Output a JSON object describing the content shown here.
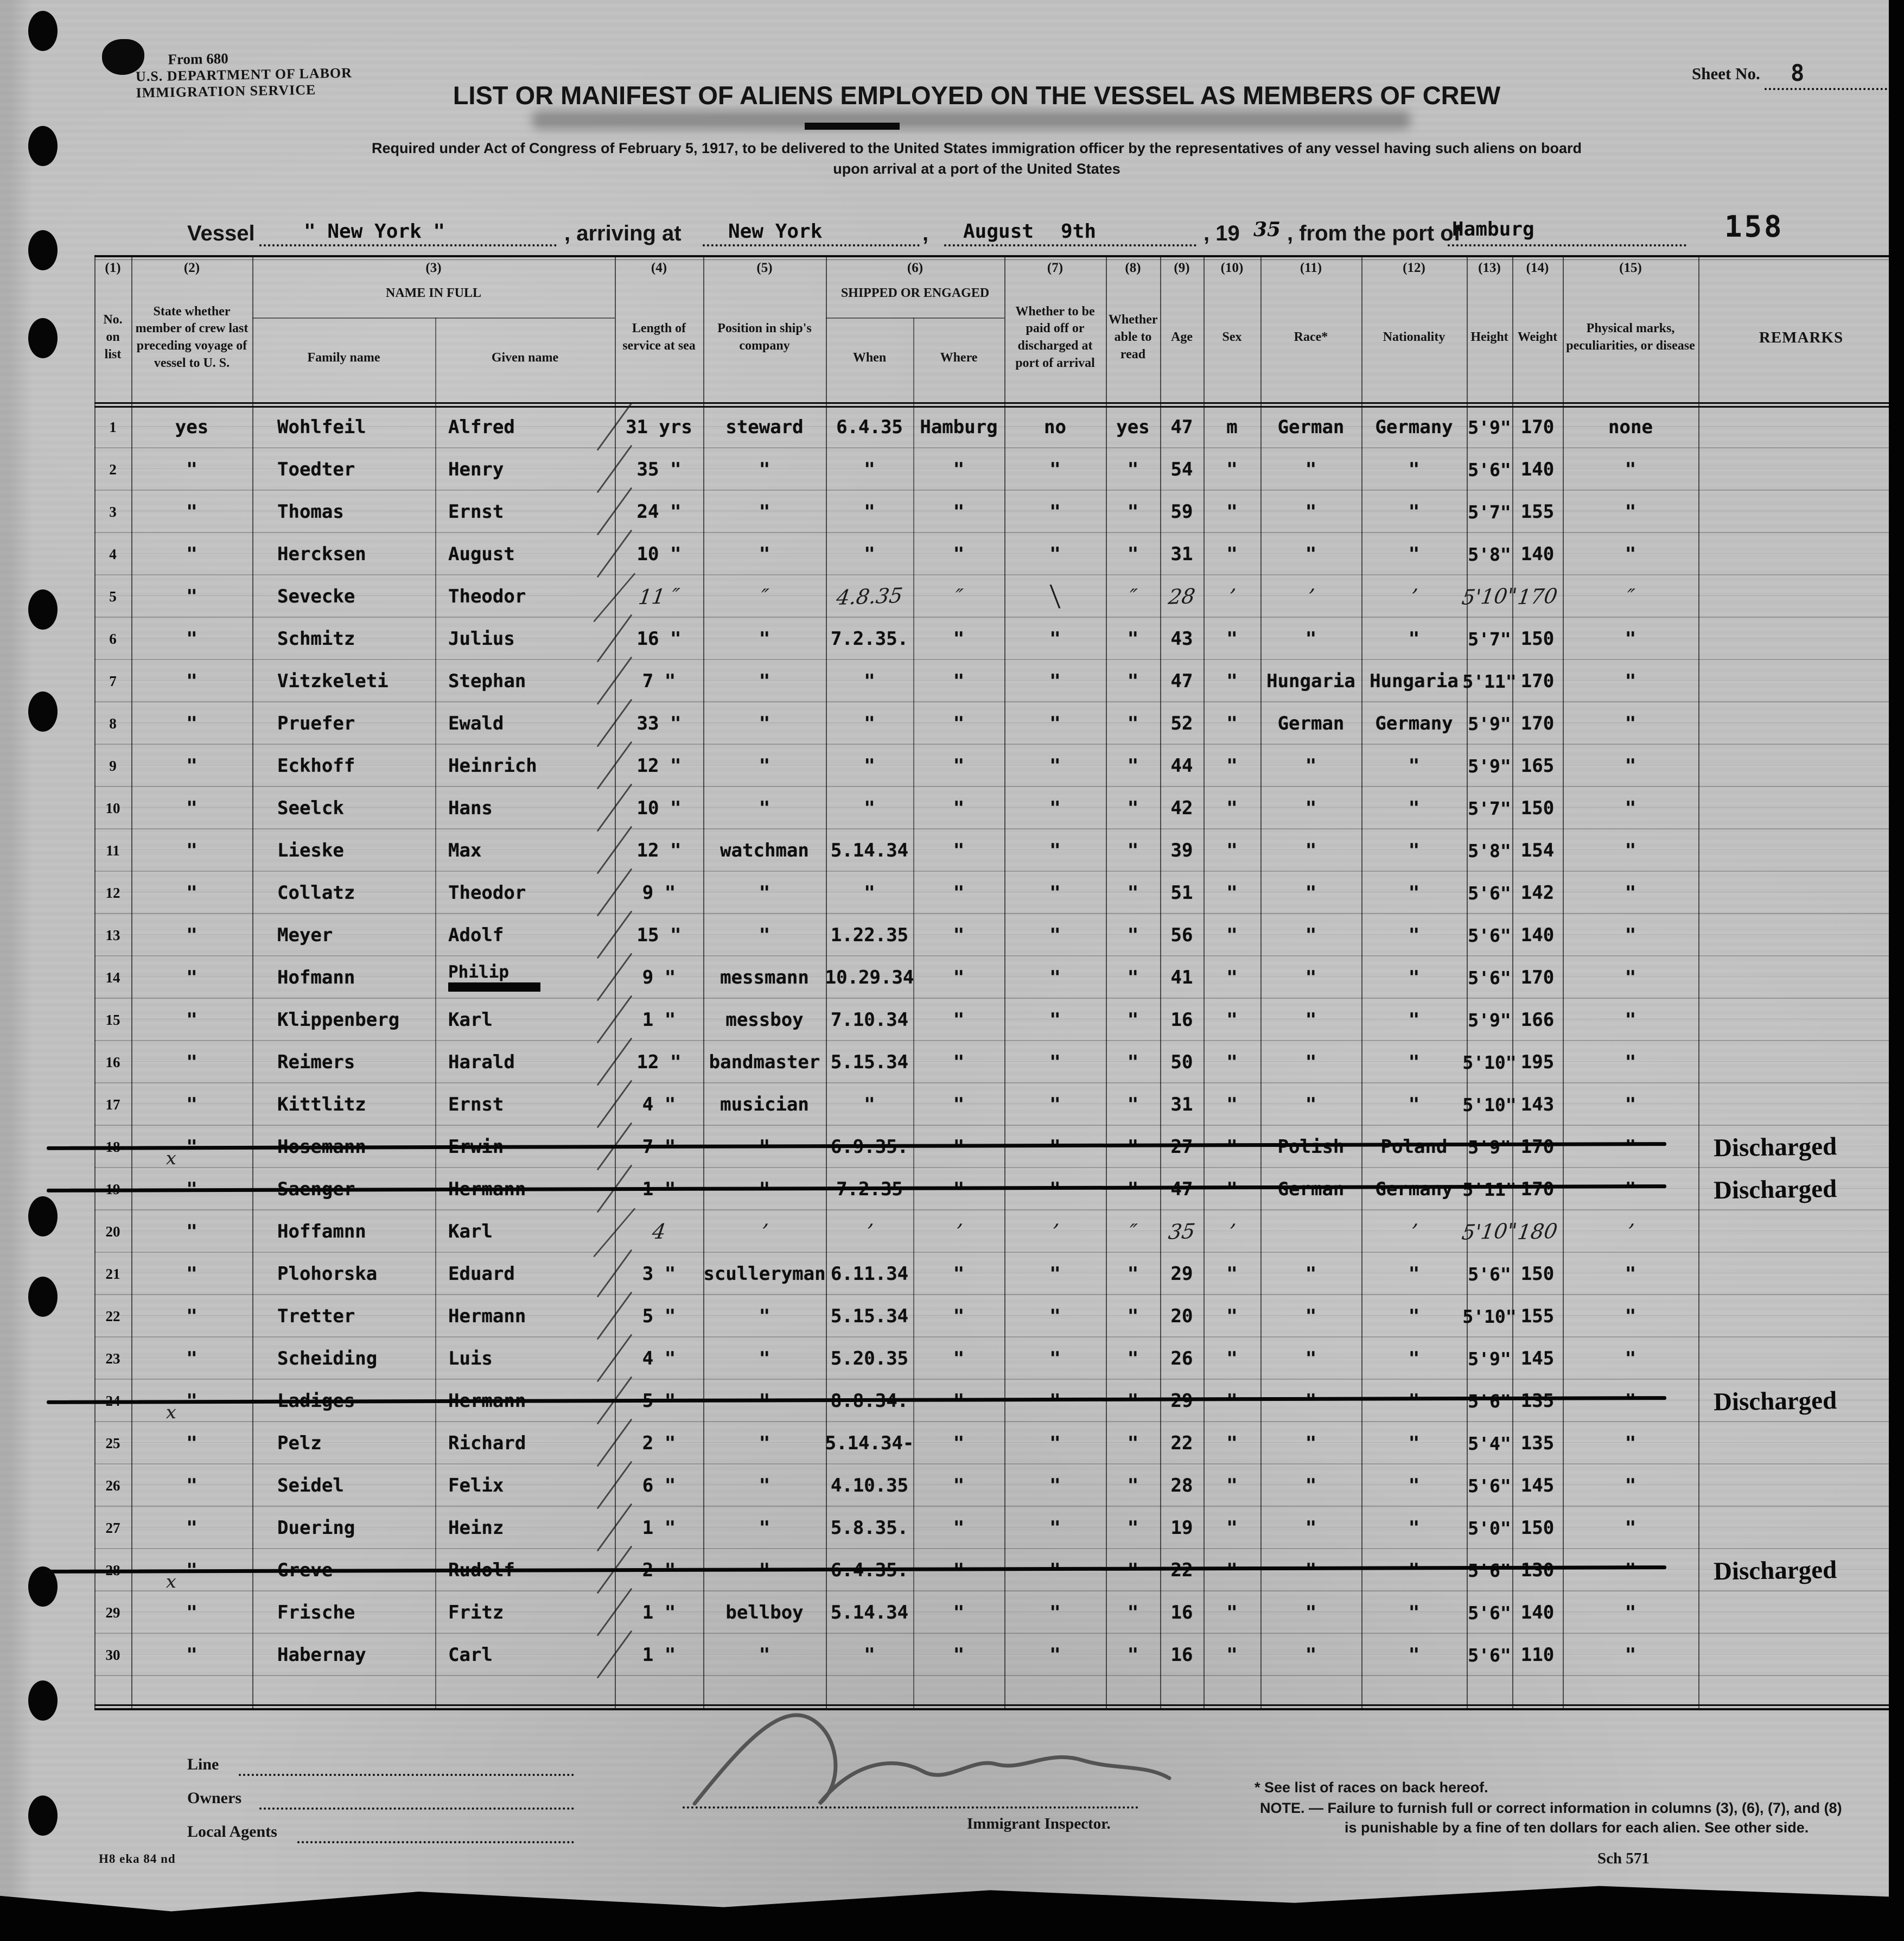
{
  "form": {
    "form_no": "From 680",
    "dept": "U.S. DEPARTMENT OF LABOR",
    "service": "IMMIGRATION SERVICE",
    "title": "LIST OR MANIFEST OF ALIENS EMPLOYED ON THE VESSEL AS MEMBERS OF CREW",
    "req_line1": "Required under Act of Congress of February 5, 1917, to be delivered to the United States immigration officer by the representatives of any vessel having such aliens on board",
    "req_line2": "upon arrival at a port of the United States",
    "sheet_label": "Sheet No.",
    "sheet_no": "8",
    "stamp_number": "158"
  },
  "vessel_line": {
    "vessel_label": "Vessel",
    "vessel_name": "\" New York \"",
    "arriving_label": ", arriving at",
    "arrival_port": "New York",
    "month": "August",
    "day": "9th",
    "year_label": ", 19",
    "year": "35",
    "from_label": ", from the port of",
    "departure_port": "Hamburg"
  },
  "columns": {
    "c1_num": "(1)",
    "c1": "No. on list",
    "c2_num": "(2)",
    "c2": "State whether member of crew last preceding voyage of vessel to U. S.",
    "c3_num": "(3)",
    "c3": "NAME IN FULL",
    "c3a": "Family name",
    "c3b": "Given name",
    "c4_num": "(4)",
    "c4": "Length of service at sea",
    "c5_num": "(5)",
    "c5": "Position in ship's company",
    "c6_num": "(6)",
    "c6": "SHIPPED OR ENGAGED",
    "c6a": "When",
    "c6b": "Where",
    "c7_num": "(7)",
    "c7": "Whether to be paid off or discharged at port of arrival",
    "c8_num": "(8)",
    "c8": "Whether able to read",
    "c9_num": "(9)",
    "c9": "Age",
    "c10_num": "(10)",
    "c10": "Sex",
    "c11_num": "(11)",
    "c11": "Race*",
    "c12_num": "(12)",
    "c12": "Nationality",
    "c13_num": "(13)",
    "c13": "Height",
    "c14_num": "(14)",
    "c14": "Weight",
    "c15_num": "(15)",
    "c15": "Physical marks, peculiarities, or disease",
    "c16": "REMARKS"
  },
  "rows": [
    {
      "no": "1",
      "crew": "yes",
      "family": "Wohlfeil",
      "given": "Alfred",
      "len": "31 yrs",
      "pos": "steward",
      "when": "6.4.35",
      "where": "Hamburg",
      "paid": "no",
      "read": "yes",
      "age": "47",
      "sex": "m",
      "race": "German",
      "nat": "Germany",
      "height": "5'9\"",
      "weight": "170",
      "marks": "none",
      "remark": ""
    },
    {
      "no": "2",
      "crew": "\"",
      "family": "Toedter",
      "given": "Henry",
      "len": "35 \"",
      "pos": "\"",
      "when": "\"",
      "where": "\"",
      "paid": "\"",
      "read": "\"",
      "age": "54",
      "sex": "\"",
      "race": "\"",
      "nat": "\"",
      "height": "5'6\"",
      "weight": "140",
      "marks": "\"",
      "remark": ""
    },
    {
      "no": "3",
      "crew": "\"",
      "family": "Thomas",
      "given": "Ernst",
      "len": "24 \"",
      "pos": "\"",
      "when": "\"",
      "where": "\"",
      "paid": "\"",
      "read": "\"",
      "age": "59",
      "sex": "\"",
      "race": "\"",
      "nat": "\"",
      "height": "5'7\"",
      "weight": "155",
      "marks": "\"",
      "remark": ""
    },
    {
      "no": "4",
      "crew": "\"",
      "family": "Hercksen",
      "given": "August",
      "len": "10 \"",
      "pos": "\"",
      "when": "\"",
      "where": "\"",
      "paid": "\"",
      "read": "\"",
      "age": "31",
      "sex": "\"",
      "race": "\"",
      "nat": "\"",
      "height": "5'8\"",
      "weight": "140",
      "marks": "\"",
      "remark": ""
    },
    {
      "no": "5",
      "crew": "\"",
      "family": "Sevecke",
      "given": "Theodor",
      "len": "11 ″",
      "pos": "″",
      "when": "4.8.35",
      "where": "″",
      "paid": "╲",
      "read": "″",
      "age": "28",
      "sex": "’",
      "race": "’",
      "nat": "’",
      "height": "5'10\"",
      "weight": "170",
      "marks": "″",
      "remark": "",
      "hw": true
    },
    {
      "no": "6",
      "crew": "\"",
      "family": "Schmitz",
      "given": "Julius",
      "len": "16 \"",
      "pos": "\"",
      "when": "7.2.35.",
      "where": "\"",
      "paid": "\"",
      "read": "\"",
      "age": "43",
      "sex": "\"",
      "race": "\"",
      "nat": "\"",
      "height": "5'7\"",
      "weight": "150",
      "marks": "\"",
      "remark": ""
    },
    {
      "no": "7",
      "crew": "\"",
      "family": "Vitzkeleti",
      "given": "Stephan",
      "len": "7 \"",
      "pos": "\"",
      "when": "\"",
      "where": "\"",
      "paid": "\"",
      "read": "\"",
      "age": "47",
      "sex": "\"",
      "race": "Hungaria",
      "nat": "Hungaria",
      "height": "5'11\"",
      "weight": "170",
      "marks": "\"",
      "remark": ""
    },
    {
      "no": "8",
      "crew": "\"",
      "family": "Pruefer",
      "given": "Ewald",
      "len": "33 \"",
      "pos": "\"",
      "when": "\"",
      "where": "\"",
      "paid": "\"",
      "read": "\"",
      "age": "52",
      "sex": "\"",
      "race": "German",
      "nat": "Germany",
      "height": "5'9\"",
      "weight": "170",
      "marks": "\"",
      "remark": ""
    },
    {
      "no": "9",
      "crew": "\"",
      "family": "Eckhoff",
      "given": "Heinrich",
      "len": "12 \"",
      "pos": "\"",
      "when": "\"",
      "where": "\"",
      "paid": "\"",
      "read": "\"",
      "age": "44",
      "sex": "\"",
      "race": "\"",
      "nat": "\"",
      "height": "5'9\"",
      "weight": "165",
      "marks": "\"",
      "remark": ""
    },
    {
      "no": "10",
      "crew": "\"",
      "family": "Seelck",
      "given": "Hans",
      "len": "10 \"",
      "pos": "\"",
      "when": "\"",
      "where": "\"",
      "paid": "\"",
      "read": "\"",
      "age": "42",
      "sex": "\"",
      "race": "\"",
      "nat": "\"",
      "height": "5'7\"",
      "weight": "150",
      "marks": "\"",
      "remark": ""
    },
    {
      "no": "11",
      "crew": "\"",
      "family": "Lieske",
      "given": "Max",
      "len": "12 \"",
      "pos": "watchman",
      "when": "5.14.34",
      "where": "\"",
      "paid": "\"",
      "read": "\"",
      "age": "39",
      "sex": "\"",
      "race": "\"",
      "nat": "\"",
      "height": "5'8\"",
      "weight": "154",
      "marks": "\"",
      "remark": ""
    },
    {
      "no": "12",
      "crew": "\"",
      "family": "Collatz",
      "given": "Theodor",
      "len": "9 \"",
      "pos": "\"",
      "when": "\"",
      "where": "\"",
      "paid": "\"",
      "read": "\"",
      "age": "51",
      "sex": "\"",
      "race": "\"",
      "nat": "\"",
      "height": "5'6\"",
      "weight": "142",
      "marks": "\"",
      "remark": ""
    },
    {
      "no": "13",
      "crew": "\"",
      "family": "Meyer",
      "given": "Adolf",
      "len": "15 \"",
      "pos": "\"",
      "when": "1.22.35",
      "where": "\"",
      "paid": "\"",
      "read": "\"",
      "age": "56",
      "sex": "\"",
      "race": "\"",
      "nat": "\"",
      "height": "5'6\"",
      "weight": "140",
      "marks": "\"",
      "remark": ""
    },
    {
      "no": "14",
      "crew": "\"",
      "family": "Hofmann",
      "given": "Philip",
      "len": "9 \"",
      "pos": "messmann",
      "when": "10.29.34",
      "where": "\"",
      "paid": "\"",
      "read": "\"",
      "age": "41",
      "sex": "\"",
      "race": "\"",
      "nat": "\"",
      "height": "5'6\"",
      "weight": "170",
      "marks": "\"",
      "remark": "",
      "blackout": true
    },
    {
      "no": "15",
      "crew": "\"",
      "family": "Klippenberg",
      "given": "Karl",
      "len": "1 \"",
      "pos": "messboy",
      "when": "7.10.34",
      "where": "\"",
      "paid": "\"",
      "read": "\"",
      "age": "16",
      "sex": "\"",
      "race": "\"",
      "nat": "\"",
      "height": "5'9\"",
      "weight": "166",
      "marks": "\"",
      "remark": ""
    },
    {
      "no": "16",
      "crew": "\"",
      "family": "Reimers",
      "given": "Harald",
      "len": "12 \"",
      "pos": "bandmaster",
      "when": "5.15.34",
      "where": "\"",
      "paid": "\"",
      "read": "\"",
      "age": "50",
      "sex": "\"",
      "race": "\"",
      "nat": "\"",
      "height": "5'10\"",
      "weight": "195",
      "marks": "\"",
      "remark": ""
    },
    {
      "no": "17",
      "crew": "\"",
      "family": "Kittlitz",
      "given": "Ernst",
      "len": "4 \"",
      "pos": "musician",
      "when": "\"",
      "where": "\"",
      "paid": "\"",
      "read": "\"",
      "age": "31",
      "sex": "\"",
      "race": "\"",
      "nat": "\"",
      "height": "5'10\"",
      "weight": "143",
      "marks": "\"",
      "remark": ""
    },
    {
      "no": "18",
      "crew": "\"",
      "family": "Hosemann",
      "given": "Erwin",
      "len": "7 \"",
      "pos": "\"",
      "when": "6.9.35.",
      "where": "\"",
      "paid": "\"",
      "read": "\"",
      "age": "27",
      "sex": "\"",
      "race": "Polish",
      "nat": "Poland",
      "height": "5'9\"",
      "weight": "170",
      "marks": "\"",
      "remark": "Discharged",
      "struck": true,
      "x": true
    },
    {
      "no": "19",
      "crew": "\"",
      "family": "Saenger",
      "given": "Hermann",
      "len": "1 \"",
      "pos": "\"",
      "when": "7.2.35",
      "where": "\"",
      "paid": "\"",
      "read": "\"",
      "age": "47",
      "sex": "\"",
      "race": "German",
      "nat": "Germany",
      "height": "5'11\"",
      "weight": "170",
      "marks": "\"",
      "remark": "Discharged",
      "struck": true
    },
    {
      "no": "20",
      "crew": "\"",
      "family": "Hoffamnn",
      "given": "Karl",
      "len": "4",
      "pos": "’",
      "when": "’",
      "where": "’",
      "paid": "’",
      "read": "″",
      "age": "35",
      "sex": "’",
      "race": "",
      "nat": "’",
      "height": "5'10\"",
      "weight": "180",
      "marks": "’",
      "remark": "",
      "hw": true
    },
    {
      "no": "21",
      "crew": "\"",
      "family": "Plohorska",
      "given": "Eduard",
      "len": "3 \"",
      "pos": "sculleryman",
      "when": "6.11.34",
      "where": "\"",
      "paid": "\"",
      "read": "\"",
      "age": "29",
      "sex": "\"",
      "race": "\"",
      "nat": "\"",
      "height": "5'6\"",
      "weight": "150",
      "marks": "\"",
      "remark": ""
    },
    {
      "no": "22",
      "crew": "\"",
      "family": "Tretter",
      "given": "Hermann",
      "len": "5 \"",
      "pos": "\"",
      "when": "5.15.34",
      "where": "\"",
      "paid": "\"",
      "read": "\"",
      "age": "20",
      "sex": "\"",
      "race": "\"",
      "nat": "\"",
      "height": "5'10\"",
      "weight": "155",
      "marks": "\"",
      "remark": ""
    },
    {
      "no": "23",
      "crew": "\"",
      "family": "Scheiding",
      "given": "Luis",
      "len": "4 \"",
      "pos": "\"",
      "when": "5.20.35",
      "where": "\"",
      "paid": "\"",
      "read": "\"",
      "age": "26",
      "sex": "\"",
      "race": "\"",
      "nat": "\"",
      "height": "5'9\"",
      "weight": "145",
      "marks": "\"",
      "remark": ""
    },
    {
      "no": "24",
      "crew": "\"",
      "family": "Ladiges",
      "given": "Hermann",
      "len": "5 \"",
      "pos": "\"",
      "when": "8.8.34.",
      "where": "\"",
      "paid": "\"",
      "read": "\"",
      "age": "29",
      "sex": "\"",
      "race": "\"",
      "nat": "\"",
      "height": "5'6\"",
      "weight": "135",
      "marks": "\"",
      "remark": "Discharged",
      "struck": true,
      "x": true
    },
    {
      "no": "25",
      "crew": "\"",
      "family": "Pelz",
      "given": "Richard",
      "len": "2 \"",
      "pos": "\"",
      "when": "5.14.34-",
      "where": "\"",
      "paid": "\"",
      "read": "\"",
      "age": "22",
      "sex": "\"",
      "race": "\"",
      "nat": "\"",
      "height": "5'4\"",
      "weight": "135",
      "marks": "\"",
      "remark": ""
    },
    {
      "no": "26",
      "crew": "\"",
      "family": "Seidel",
      "given": "Felix",
      "len": "6 \"",
      "pos": "\"",
      "when": "4.10.35",
      "where": "\"",
      "paid": "\"",
      "read": "\"",
      "age": "28",
      "sex": "\"",
      "race": "\"",
      "nat": "\"",
      "height": "5'6\"",
      "weight": "145",
      "marks": "\"",
      "remark": ""
    },
    {
      "no": "27",
      "crew": "\"",
      "family": "Duering",
      "given": "Heinz",
      "len": "1 \"",
      "pos": "\"",
      "when": "5.8.35.",
      "where": "\"",
      "paid": "\"",
      "read": "\"",
      "age": "19",
      "sex": "\"",
      "race": "\"",
      "nat": "\"",
      "height": "5'0\"",
      "weight": "150",
      "marks": "\"",
      "remark": ""
    },
    {
      "no": "28",
      "crew": "\"",
      "family": "Greve",
      "given": "Rudolf",
      "len": "2 \"",
      "pos": "\"",
      "when": "6.4.35.",
      "where": "\"",
      "paid": "\"",
      "read": "\"",
      "age": "22",
      "sex": "\"",
      "race": "\"",
      "nat": "\"",
      "height": "5'6\"",
      "weight": "130",
      "marks": "\"",
      "remark": "Discharged",
      "struck": true,
      "x": true
    },
    {
      "no": "29",
      "crew": "\"",
      "family": "Frische",
      "given": "Fritz",
      "len": "1 \"",
      "pos": "bellboy",
      "when": "5.14.34",
      "where": "\"",
      "paid": "\"",
      "read": "\"",
      "age": "16",
      "sex": "\"",
      "race": "\"",
      "nat": "\"",
      "height": "5'6\"",
      "weight": "140",
      "marks": "\"",
      "remark": ""
    },
    {
      "no": "30",
      "crew": "\"",
      "family": "Habernay",
      "given": "Carl",
      "len": "1 \"",
      "pos": "\"",
      "when": "\"",
      "where": "\"",
      "paid": "\"",
      "read": "\"",
      "age": "16",
      "sex": "\"",
      "race": "\"",
      "nat": "\"",
      "height": "5'6\"",
      "weight": "110",
      "marks": "\"",
      "remark": ""
    }
  ],
  "footer": {
    "line_label": "Line",
    "owners_label": "Owners",
    "agents_label": "Local Agents",
    "inspector_label": "Immigrant Inspector.",
    "note_races": "* See list of races on back hereof.",
    "note_line1": "NOTE. — Failure to furnish full or correct information in columns (3), (6), (7), and (8)",
    "note_line2": "is punishable by a fine of ten dollars for each alien.  See other side.",
    "sch": "Sch 571",
    "plate": "H8 eka 84 nd"
  }
}
